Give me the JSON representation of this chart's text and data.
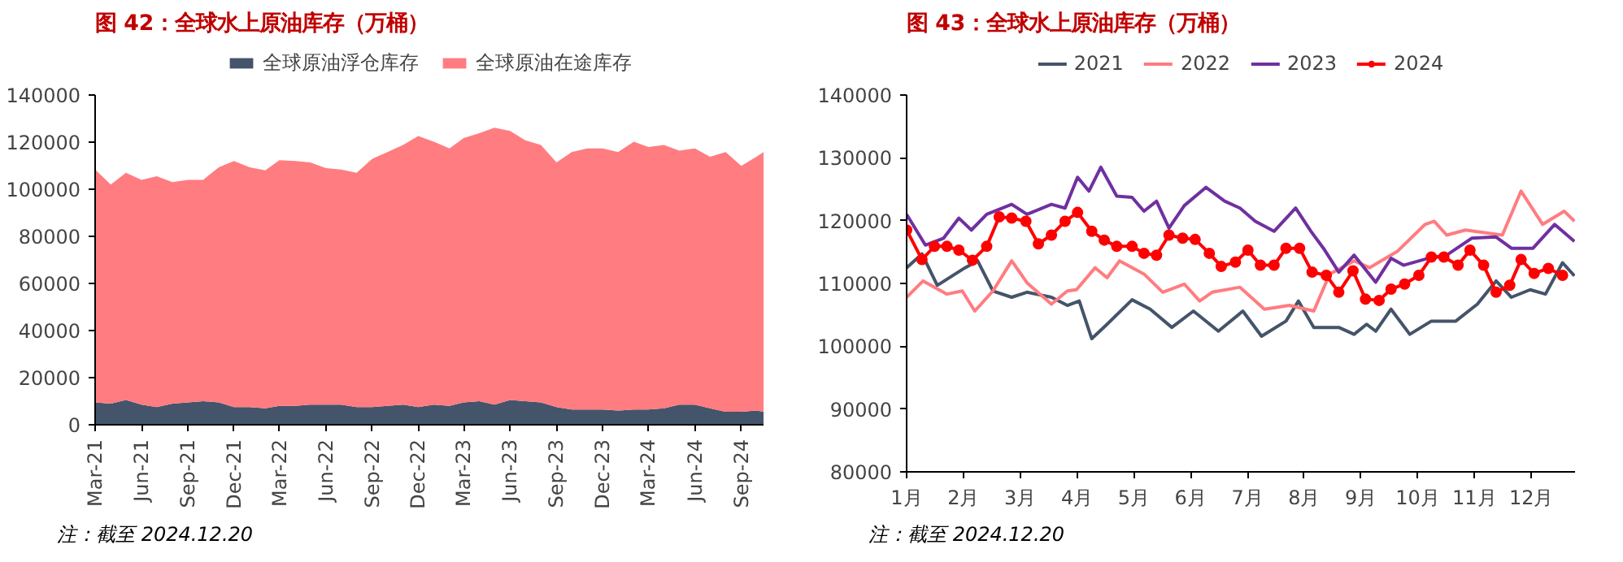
{
  "chart_data": [
    {
      "type": "area",
      "title": "图 42：全球水上原油库存（万桶）",
      "stacked": true,
      "legend": "top",
      "grid": false,
      "x": [
        "2021-03-01",
        "2021-04-01",
        "2021-05-01",
        "2021-06-01",
        "2021-07-01",
        "2021-08-01",
        "2021-09-01",
        "2021-10-01",
        "2021-11-01",
        "2021-12-01",
        "2022-01-01",
        "2022-02-01",
        "2022-03-01",
        "2022-04-01",
        "2022-05-01",
        "2022-06-01",
        "2022-07-01",
        "2022-08-01",
        "2022-09-01",
        "2022-10-01",
        "2022-11-01",
        "2022-12-01",
        "2023-01-01",
        "2023-02-01",
        "2023-03-01",
        "2023-04-01",
        "2023-05-01",
        "2023-06-01",
        "2023-07-01",
        "2023-08-01",
        "2023-09-01",
        "2023-10-01",
        "2023-11-01",
        "2023-12-01",
        "2024-01-01",
        "2024-02-01",
        "2024-03-01",
        "2024-04-01",
        "2024-05-01",
        "2024-06-01",
        "2024-07-01",
        "2024-08-01",
        "2024-09-01",
        "2024-10-01",
        "2024-10-15"
      ],
      "series": [
        {
          "name": "全球原油浮仓库存",
          "color": "#44546a",
          "values": [
            9500,
            9000,
            10500,
            8500,
            7500,
            9000,
            9500,
            10000,
            9500,
            7500,
            7500,
            7000,
            8000,
            8000,
            8500,
            8500,
            8500,
            7500,
            7500,
            8000,
            8500,
            7500,
            8500,
            8000,
            9500,
            10000,
            8500,
            10500,
            10000,
            9500,
            7500,
            6500,
            6500,
            6500,
            6000,
            6500,
            6500,
            7000,
            8500,
            8500,
            7000,
            5500,
            5500,
            6000,
            5500
          ]
        },
        {
          "name": "全球原油在途库存",
          "color": "#ff7c80",
          "values": [
            98900,
            93000,
            96500,
            95500,
            98000,
            94000,
            94500,
            94000,
            99800,
            104500,
            101800,
            101000,
            104300,
            104000,
            102900,
            100500,
            99900,
            99500,
            105400,
            107800,
            110300,
            115100,
            111700,
            109300,
            112200,
            113800,
            117600,
            114200,
            110800,
            109300,
            103900,
            109300,
            110800,
            110800,
            109800,
            113700,
            111400,
            111800,
            107900,
            108800,
            106800,
            110300,
            104400,
            107800,
            110300
          ]
        }
      ],
      "xlim": [
        "2021-03-01",
        "2024-10-15"
      ],
      "xticks": [
        {
          "value": "2021-03-01",
          "label": "Mar-21"
        },
        {
          "value": "2021-06-01",
          "label": "Jun-21"
        },
        {
          "value": "2021-09-01",
          "label": "Sep-21"
        },
        {
          "value": "2021-12-01",
          "label": "Dec-21"
        },
        {
          "value": "2022-03-01",
          "label": "Mar-22"
        },
        {
          "value": "2022-06-01",
          "label": "Jun-22"
        },
        {
          "value": "2022-09-01",
          "label": "Sep-22"
        },
        {
          "value": "2022-12-01",
          "label": "Dec-22"
        },
        {
          "value": "2023-03-01",
          "label": "Mar-23"
        },
        {
          "value": "2023-06-01",
          "label": "Jun-23"
        },
        {
          "value": "2023-09-01",
          "label": "Sep-23"
        },
        {
          "value": "2023-12-01",
          "label": "Dec-23"
        },
        {
          "value": "2024-03-01",
          "label": "Mar-24"
        },
        {
          "value": "2024-06-01",
          "label": "Jun-24"
        },
        {
          "value": "2024-09-01",
          "label": "Sep-24"
        }
      ],
      "ylim": [
        0,
        140000
      ],
      "yticks": [
        0,
        20000,
        40000,
        60000,
        80000,
        100000,
        120000,
        140000
      ],
      "annotations": [
        "注：截至 2024.12.20"
      ]
    },
    {
      "type": "line",
      "title": "图 43：全球水上原油库存（万桶）",
      "legend": "top",
      "grid": false,
      "marker": "none",
      "line_style": "solid",
      "series": [
        {
          "name": "2021",
          "color": "#44546a",
          "x": [
            1.0,
            1.27,
            1.54,
            2.03,
            2.25,
            2.52,
            2.85,
            3.12,
            3.55,
            3.83,
            4.04,
            4.26,
            4.53,
            4.97,
            5.29,
            5.67,
            6.05,
            6.49,
            6.92,
            7.25,
            7.68,
            7.9,
            8.17,
            8.61,
            8.88,
            9.1,
            9.26,
            9.53,
            9.86,
            10.24,
            10.67,
            11.05,
            11.38,
            11.65,
            11.98,
            12.25,
            12.55,
            12.76
          ],
          "values": [
            112500,
            114700,
            109700,
            112500,
            113600,
            108800,
            107800,
            108600,
            107800,
            106500,
            107200,
            101200,
            103500,
            107400,
            105900,
            103000,
            105600,
            102400,
            105600,
            101600,
            104000,
            107200,
            103000,
            103000,
            101900,
            103500,
            102400,
            105900,
            101900,
            104000,
            104000,
            106700,
            110400,
            107800,
            109000,
            108300,
            113300,
            111200
          ]
        },
        {
          "name": "2022",
          "color": "#ff7c80",
          "x": [
            1.0,
            1.29,
            1.71,
            1.98,
            2.2,
            2.52,
            2.85,
            3.12,
            3.55,
            3.83,
            3.99,
            4.32,
            4.53,
            4.75,
            5.18,
            5.51,
            5.89,
            6.16,
            6.38,
            6.87,
            7.3,
            7.74,
            8.17,
            8.45,
            8.88,
            9.15,
            9.64,
            10.13,
            10.29,
            10.51,
            10.84,
            11.49,
            11.82,
            12.2,
            12.58,
            12.76
          ],
          "values": [
            107800,
            110400,
            108300,
            108800,
            105600,
            108800,
            113600,
            110100,
            106700,
            108800,
            109000,
            112500,
            110900,
            113600,
            111500,
            108600,
            109900,
            107200,
            108600,
            109400,
            105900,
            106500,
            105600,
            111500,
            113600,
            112500,
            115100,
            119400,
            119900,
            117700,
            118500,
            117700,
            124700,
            119400,
            121500,
            119900
          ]
        },
        {
          "name": "2023",
          "color": "#7030a0",
          "x": [
            1.0,
            1.33,
            1.65,
            1.92,
            2.14,
            2.41,
            2.85,
            3.12,
            3.55,
            3.79,
            4.01,
            4.21,
            4.42,
            4.7,
            4.97,
            5.18,
            5.4,
            5.62,
            5.89,
            6.27,
            6.6,
            6.87,
            7.14,
            7.47,
            7.85,
            8.12,
            8.34,
            8.61,
            8.88,
            9.26,
            9.53,
            9.75,
            10.18,
            10.51,
            10.95,
            11.38,
            11.65,
            12.03,
            12.41,
            12.76
          ],
          "values": [
            121000,
            116100,
            117200,
            120400,
            118500,
            121000,
            122600,
            121000,
            122600,
            122000,
            126900,
            124700,
            128500,
            123900,
            123700,
            121500,
            123100,
            118800,
            122400,
            125300,
            123100,
            122000,
            119900,
            118300,
            122000,
            118300,
            115600,
            111800,
            114500,
            110200,
            114000,
            112900,
            114000,
            114500,
            117200,
            117400,
            115600,
            115600,
            119400,
            116700
          ]
        },
        {
          "name": "2024",
          "color": "#ff0000",
          "marker": "circle",
          "x": [
            1.0,
            1.27,
            1.49,
            1.71,
            1.92,
            2.16,
            2.41,
            2.63,
            2.85,
            3.1,
            3.32,
            3.55,
            3.79,
            4.01,
            4.26,
            4.48,
            4.7,
            4.97,
            5.18,
            5.4,
            5.62,
            5.86,
            6.08,
            6.33,
            6.54,
            6.79,
            7.01,
            7.23,
            7.47,
            7.68,
            7.92,
            8.14,
            8.39,
            8.61,
            8.86,
            9.08,
            9.32,
            9.53,
            9.77,
            10.02,
            10.24,
            10.46,
            10.71,
            10.92,
            11.16,
            11.38,
            11.62,
            11.82,
            12.05,
            12.3,
            12.55
          ],
          "values": [
            118500,
            113800,
            115900,
            115900,
            115300,
            113700,
            115900,
            120600,
            120400,
            119900,
            116300,
            117700,
            119900,
            121300,
            118300,
            116900,
            115900,
            115900,
            114800,
            114500,
            117700,
            117200,
            117000,
            114800,
            112700,
            113400,
            115300,
            112900,
            112900,
            115600,
            115600,
            111800,
            111300,
            108600,
            112000,
            107500,
            107300,
            109100,
            109900,
            111300,
            114200,
            114200,
            112900,
            115300,
            112900,
            108600,
            109700,
            113800,
            111600,
            112400,
            111300
          ]
        }
      ],
      "xlim": [
        1,
        12.77
      ],
      "xticks": [
        {
          "value": 1,
          "label": "1月"
        },
        {
          "value": 2,
          "label": "2月"
        },
        {
          "value": 3,
          "label": "3月"
        },
        {
          "value": 4,
          "label": "4月"
        },
        {
          "value": 5,
          "label": "5月"
        },
        {
          "value": 6,
          "label": "6月"
        },
        {
          "value": 7,
          "label": "7月"
        },
        {
          "value": 8,
          "label": "8月"
        },
        {
          "value": 9,
          "label": "9月"
        },
        {
          "value": 10,
          "label": "10月"
        },
        {
          "value": 11,
          "label": "11月"
        },
        {
          "value": 12,
          "label": "12月"
        }
      ],
      "ylim": [
        80000,
        140000
      ],
      "yticks": [
        80000,
        90000,
        100000,
        110000,
        120000,
        130000,
        140000
      ],
      "annotations": [
        "注：截至 2024.12.20"
      ]
    }
  ]
}
